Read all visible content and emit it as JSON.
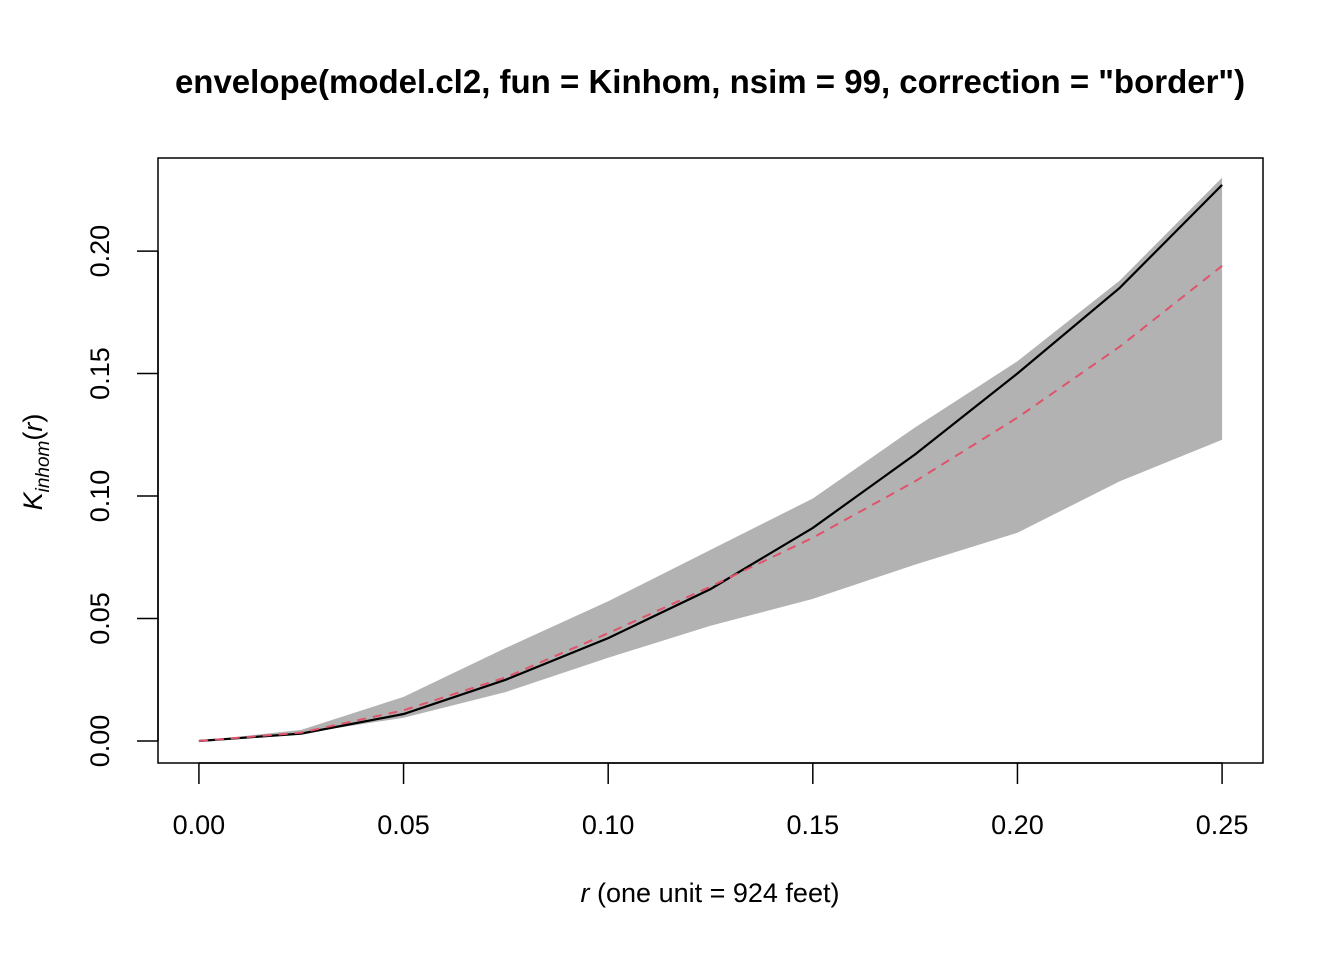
{
  "chart_data": {
    "type": "line",
    "title": "envelope(model.cl2, fun = Kinhom, nsim = 99, correction = \"border\")",
    "xlabel": {
      "italic": "r",
      "rest": " (one unit = 924 feet)"
    },
    "ylabel": {
      "base": "K",
      "subscript": "inhom",
      "paren_open": "(",
      "var": "r",
      "paren_close": ")"
    },
    "xlim": [
      -0.01,
      0.26
    ],
    "ylim": [
      -0.009,
      0.238
    ],
    "x_ticks": [
      {
        "value": 0.0,
        "label": "0.00"
      },
      {
        "value": 0.05,
        "label": "0.05"
      },
      {
        "value": 0.1,
        "label": "0.10"
      },
      {
        "value": 0.15,
        "label": "0.15"
      },
      {
        "value": 0.2,
        "label": "0.20"
      },
      {
        "value": 0.25,
        "label": "0.25"
      }
    ],
    "y_ticks": [
      {
        "value": 0.0,
        "label": "0.00"
      },
      {
        "value": 0.05,
        "label": "0.05"
      },
      {
        "value": 0.1,
        "label": "0.10"
      },
      {
        "value": 0.15,
        "label": "0.15"
      },
      {
        "value": 0.2,
        "label": "0.20"
      }
    ],
    "envelope": {
      "color": "#b2b2b2",
      "x": [
        0,
        0.025,
        0.05,
        0.075,
        0.1,
        0.125,
        0.15,
        0.175,
        0.2,
        0.225,
        0.25
      ],
      "lo": [
        0,
        0.003,
        0.0095,
        0.02,
        0.034,
        0.047,
        0.058,
        0.072,
        0.085,
        0.106,
        0.123
      ],
      "hi": [
        0,
        0.0045,
        0.018,
        0.038,
        0.057,
        0.078,
        0.099,
        0.128,
        0.155,
        0.188,
        0.23
      ]
    },
    "series": [
      {
        "key": "observed",
        "color": "#000000",
        "dash": "solid",
        "x": [
          0,
          0.025,
          0.05,
          0.075,
          0.1,
          0.125,
          0.135,
          0.15,
          0.175,
          0.2,
          0.225,
          0.25
        ],
        "y": [
          0,
          0.003,
          0.011,
          0.025,
          0.042,
          0.062,
          0.072,
          0.087,
          0.117,
          0.15,
          0.185,
          0.227
        ]
      },
      {
        "key": "theoretical",
        "color": "#df536b",
        "dash": "dashed",
        "x": [
          0,
          0.025,
          0.05,
          0.075,
          0.1,
          0.125,
          0.15,
          0.175,
          0.2,
          0.225,
          0.25
        ],
        "y": [
          0,
          0.0034,
          0.0125,
          0.026,
          0.044,
          0.063,
          0.083,
          0.106,
          0.132,
          0.161,
          0.194
        ]
      }
    ],
    "grid": false,
    "legend": "none"
  }
}
